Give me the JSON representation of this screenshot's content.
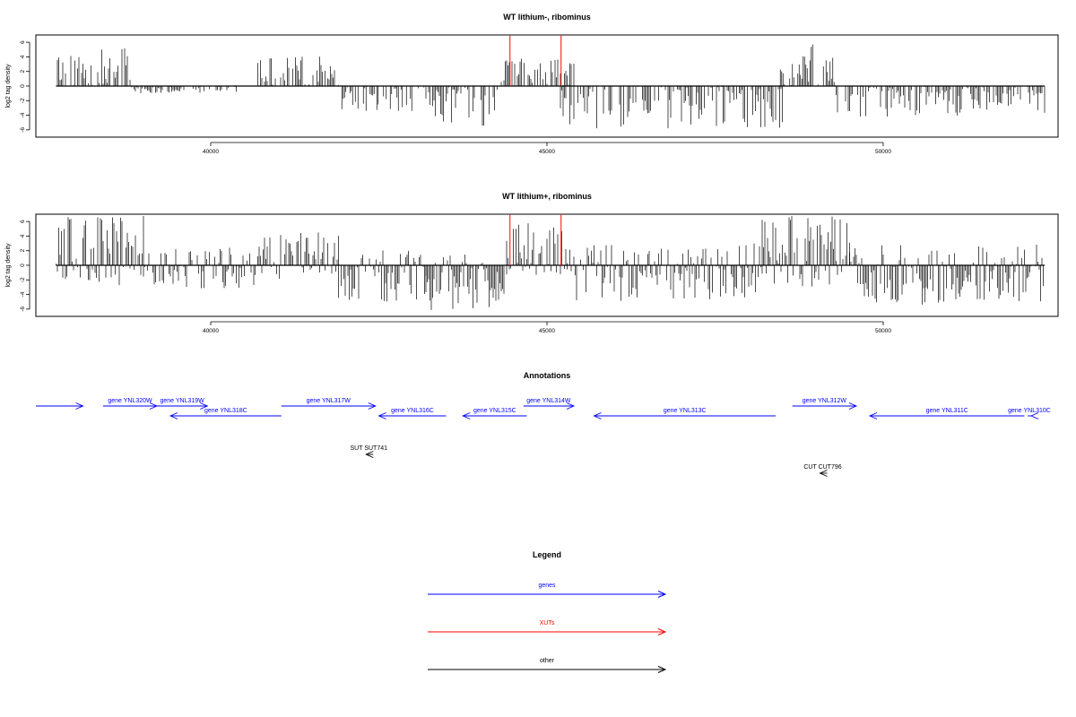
{
  "chart_data": [
    {
      "type": "bar",
      "title": "WT lithium-, ribominus",
      "ylabel": "log2 tag density",
      "xlabel": "",
      "xlim": [
        37400,
        52600
      ],
      "ylim": [
        -7,
        7
      ],
      "xticks": [
        40000,
        45000,
        50000
      ],
      "yticks": [
        6,
        4,
        2,
        0,
        -2,
        -4,
        -6
      ],
      "marker_lines_x": [
        44450,
        45210
      ],
      "marker_color": "#ff0000",
      "grid": false,
      "profile": [
        {
          "from": 37700,
          "to": 38800,
          "min": 0,
          "max": 5.2
        },
        {
          "from": 38820,
          "to": 40400,
          "min": -1.0,
          "max": 0
        },
        {
          "from": 40700,
          "to": 41900,
          "min": 0,
          "max": 4.1
        },
        {
          "from": 41950,
          "to": 43200,
          "min": -3.5,
          "max": 0
        },
        {
          "from": 43200,
          "to": 44300,
          "min": -5.5,
          "max": 0
        },
        {
          "from": 44300,
          "to": 45400,
          "min": 0,
          "max": 3.8
        },
        {
          "from": 45200,
          "to": 48500,
          "min": -5.8,
          "max": 0
        },
        {
          "from": 48450,
          "to": 49300,
          "min": 0,
          "max": 5.8
        },
        {
          "from": 49300,
          "to": 52400,
          "min": -4.2,
          "max": 0
        }
      ]
    },
    {
      "type": "bar",
      "title": "WT lithium+, ribominus",
      "ylabel": "log2 tag density",
      "xlabel": "",
      "xlim": [
        37400,
        52600
      ],
      "ylim": [
        -7,
        7
      ],
      "xticks": [
        40000,
        45000,
        50000
      ],
      "yticks": [
        6,
        4,
        2,
        0,
        -2,
        -4,
        -6
      ],
      "marker_lines_x": [
        44450,
        45210
      ],
      "marker_color": "#ff0000",
      "grid": false,
      "profile": [
        {
          "from": 37700,
          "to": 39000,
          "min": -3.0,
          "max": 6.8
        },
        {
          "from": 39000,
          "to": 40700,
          "min": -3.2,
          "max": 2.5
        },
        {
          "from": 40700,
          "to": 41900,
          "min": -2.0,
          "max": 4.5
        },
        {
          "from": 41900,
          "to": 43200,
          "min": -5.0,
          "max": 2.2
        },
        {
          "from": 43200,
          "to": 44400,
          "min": -6.5,
          "max": 1.5
        },
        {
          "from": 44400,
          "to": 45300,
          "min": -1.5,
          "max": 6.0
        },
        {
          "from": 45300,
          "to": 48200,
          "min": -5.0,
          "max": 3.0
        },
        {
          "from": 48200,
          "to": 49500,
          "min": -3.0,
          "max": 6.8
        },
        {
          "from": 49500,
          "to": 52400,
          "min": -5.5,
          "max": 3.0
        }
      ]
    }
  ],
  "annotations": {
    "title": "Annotations",
    "genes_color": "#0000ff",
    "genes": [
      {
        "label": "",
        "start": 37400,
        "end": 38100,
        "strand": "+",
        "row": 0
      },
      {
        "label": "gene YNL320W",
        "start": 38400,
        "end": 39200,
        "strand": "+",
        "row": 0
      },
      {
        "label": "gene YNL319W",
        "start": 39200,
        "end": 39950,
        "strand": "+",
        "row": 0
      },
      {
        "label": "gene YNL318C",
        "start": 39400,
        "end": 41050,
        "strand": "-",
        "row": 1
      },
      {
        "label": "gene YNL317W",
        "start": 41050,
        "end": 42450,
        "strand": "+",
        "row": 0
      },
      {
        "label": "gene YNL316C",
        "start": 42500,
        "end": 43500,
        "strand": "-",
        "row": 1
      },
      {
        "label": "gene YNL315C",
        "start": 43750,
        "end": 44700,
        "strand": "-",
        "row": 1
      },
      {
        "label": "gene YNL314W",
        "start": 44650,
        "end": 45400,
        "strand": "+",
        "row": 0
      },
      {
        "label": "gene YNL313C",
        "start": 45700,
        "end": 48400,
        "strand": "-",
        "row": 1
      },
      {
        "label": "gene YNL312W",
        "start": 48650,
        "end": 49600,
        "strand": "+",
        "row": 0
      },
      {
        "label": "gene YNL311C",
        "start": 49800,
        "end": 52100,
        "strand": "-",
        "row": 1
      },
      {
        "label": "gene YNL310C",
        "start": 52200,
        "end": 52750,
        "strand": "-",
        "row": 1
      }
    ],
    "other_color": "#000000",
    "other": [
      {
        "label": "SUT SUT741",
        "x": 42350,
        "strand": "-",
        "row": 2
      },
      {
        "label": "CUT CUT796",
        "x": 49100,
        "strand": "-",
        "row": 3
      }
    ]
  },
  "legend": {
    "title": "Legend",
    "items": [
      {
        "label": "genes",
        "color": "#0000ff"
      },
      {
        "label": "XUTs",
        "color": "#ff0000"
      },
      {
        "label": "other",
        "color": "#000000"
      }
    ]
  }
}
